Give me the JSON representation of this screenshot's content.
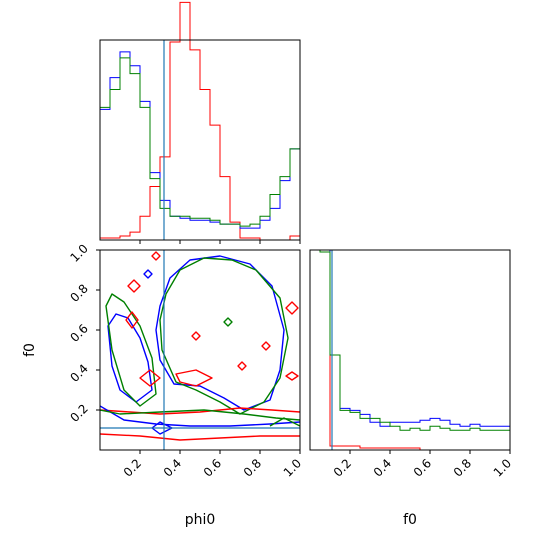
{
  "chart_data": {
    "type": "corner",
    "params": [
      "phi0",
      "f0"
    ],
    "xlabels": [
      "phi0",
      "f0"
    ],
    "ylabel": "f0",
    "series_colors": [
      "#ff0000",
      "#0000ff",
      "#008000"
    ],
    "truth": {
      "phi0": 0.32,
      "f0": 0.11,
      "color": "#1f77b4"
    },
    "ticks": {
      "phi0": [
        "0.2",
        "0.4",
        "0.6",
        "0.8",
        "1.0"
      ],
      "f0": [
        "0.2",
        "0.4",
        "0.6",
        "0.8",
        "1.0"
      ]
    },
    "hist_phi0": {
      "range": [
        0,
        1
      ],
      "bins": 20,
      "ymax": 1.0,
      "series": [
        {
          "color": "#ff0000",
          "values": [
            0.01,
            0.01,
            0.02,
            0.04,
            0.12,
            0.27,
            0.42,
            1.0,
            1.2,
            0.96,
            0.76,
            0.58,
            0.32,
            0.09,
            0.01,
            0.01,
            0.0,
            0.0,
            0.0,
            0.02
          ]
        },
        {
          "color": "#0000ff",
          "values": [
            0.66,
            0.82,
            0.95,
            0.88,
            0.7,
            0.34,
            0.2,
            0.12,
            0.11,
            0.1,
            0.1,
            0.09,
            0.08,
            0.08,
            0.06,
            0.06,
            0.1,
            0.16,
            0.3,
            0.46
          ]
        },
        {
          "color": "#008000",
          "values": [
            0.67,
            0.76,
            0.92,
            0.84,
            0.67,
            0.31,
            0.16,
            0.12,
            0.12,
            0.11,
            0.11,
            0.1,
            0.08,
            0.08,
            0.07,
            0.08,
            0.12,
            0.23,
            0.32,
            0.46
          ]
        }
      ]
    },
    "hist_f0": {
      "range": [
        0,
        1
      ],
      "bins": 20,
      "ymax": 1.0,
      "series": [
        {
          "color": "#ff0000",
          "values": [
            1.3,
            1.5,
            0.02,
            0.02,
            0.02,
            0.01,
            0.01,
            0.01,
            0.01,
            0.01,
            0.01,
            0.0,
            0.0,
            0.0,
            0.0,
            0.0,
            0.0,
            0.0,
            0.0,
            0.0
          ]
        },
        {
          "color": "#0000ff",
          "values": [
            1.2,
            1.2,
            0.48,
            0.21,
            0.2,
            0.18,
            0.14,
            0.12,
            0.14,
            0.14,
            0.14,
            0.15,
            0.16,
            0.15,
            0.13,
            0.12,
            0.13,
            0.12,
            0.12,
            0.12
          ]
        },
        {
          "color": "#008000",
          "values": [
            1.1,
            1.0,
            0.48,
            0.2,
            0.19,
            0.16,
            0.16,
            0.14,
            0.12,
            0.1,
            0.11,
            0.1,
            0.12,
            0.11,
            0.1,
            0.1,
            0.11,
            0.1,
            0.1,
            0.1
          ]
        }
      ]
    },
    "contours": [
      {
        "color": "#0000ff",
        "closed": true,
        "points": [
          [
            0.3,
            0.72
          ],
          [
            0.35,
            0.86
          ],
          [
            0.45,
            0.95
          ],
          [
            0.6,
            0.97
          ],
          [
            0.75,
            0.93
          ],
          [
            0.86,
            0.82
          ],
          [
            0.92,
            0.6
          ],
          [
            0.9,
            0.4
          ],
          [
            0.85,
            0.25
          ],
          [
            0.72,
            0.2
          ],
          [
            0.62,
            0.26
          ],
          [
            0.5,
            0.32
          ],
          [
            0.37,
            0.33
          ],
          [
            0.3,
            0.45
          ],
          [
            0.28,
            0.6
          ]
        ]
      },
      {
        "color": "#008000",
        "closed": true,
        "points": [
          [
            0.33,
            0.78
          ],
          [
            0.4,
            0.9
          ],
          [
            0.52,
            0.96
          ],
          [
            0.66,
            0.95
          ],
          [
            0.78,
            0.9
          ],
          [
            0.9,
            0.76
          ],
          [
            0.94,
            0.56
          ],
          [
            0.9,
            0.36
          ],
          [
            0.82,
            0.24
          ],
          [
            0.7,
            0.18
          ],
          [
            0.6,
            0.24
          ],
          [
            0.48,
            0.3
          ],
          [
            0.38,
            0.34
          ],
          [
            0.31,
            0.5
          ],
          [
            0.3,
            0.65
          ]
        ]
      },
      {
        "color": "#0000ff",
        "closed": true,
        "points": [
          [
            0.04,
            0.62
          ],
          [
            0.06,
            0.42
          ],
          [
            0.1,
            0.3
          ],
          [
            0.18,
            0.24
          ],
          [
            0.26,
            0.3
          ],
          [
            0.24,
            0.44
          ],
          [
            0.2,
            0.56
          ],
          [
            0.14,
            0.66
          ],
          [
            0.08,
            0.68
          ]
        ]
      },
      {
        "color": "#008000",
        "closed": true,
        "points": [
          [
            0.03,
            0.72
          ],
          [
            0.06,
            0.5
          ],
          [
            0.12,
            0.3
          ],
          [
            0.2,
            0.22
          ],
          [
            0.28,
            0.28
          ],
          [
            0.26,
            0.46
          ],
          [
            0.2,
            0.62
          ],
          [
            0.12,
            0.74
          ],
          [
            0.06,
            0.78
          ]
        ]
      },
      {
        "color": "#ff0000",
        "closed": true,
        "points": [
          [
            0.2,
            0.36
          ],
          [
            0.25,
            0.4
          ],
          [
            0.3,
            0.36
          ],
          [
            0.25,
            0.32
          ]
        ]
      },
      {
        "color": "#ff0000",
        "closed": true,
        "points": [
          [
            0.38,
            0.38
          ],
          [
            0.48,
            0.4
          ],
          [
            0.56,
            0.36
          ],
          [
            0.48,
            0.32
          ],
          [
            0.4,
            0.34
          ]
        ]
      },
      {
        "color": "#ff0000",
        "closed": true,
        "points": [
          [
            0.14,
            0.82
          ],
          [
            0.17,
            0.85
          ],
          [
            0.2,
            0.82
          ],
          [
            0.17,
            0.79
          ]
        ]
      },
      {
        "color": "#ff0000",
        "closed": true,
        "points": [
          [
            0.13,
            0.65
          ],
          [
            0.16,
            0.69
          ],
          [
            0.19,
            0.65
          ],
          [
            0.16,
            0.61
          ]
        ]
      },
      {
        "color": "#ff0000",
        "closed": true,
        "points": [
          [
            0.46,
            0.57
          ],
          [
            0.48,
            0.59
          ],
          [
            0.5,
            0.57
          ],
          [
            0.48,
            0.55
          ]
        ]
      },
      {
        "color": "#ff0000",
        "closed": true,
        "points": [
          [
            0.69,
            0.42
          ],
          [
            0.71,
            0.44
          ],
          [
            0.73,
            0.42
          ],
          [
            0.71,
            0.4
          ]
        ]
      },
      {
        "color": "#ff0000",
        "closed": true,
        "points": [
          [
            0.81,
            0.52
          ],
          [
            0.83,
            0.54
          ],
          [
            0.85,
            0.52
          ],
          [
            0.83,
            0.5
          ]
        ]
      },
      {
        "color": "#ff0000",
        "closed": true,
        "points": [
          [
            0.93,
            0.71
          ],
          [
            0.96,
            0.74
          ],
          [
            0.99,
            0.71
          ],
          [
            0.96,
            0.68
          ]
        ]
      },
      {
        "color": "#ff0000",
        "closed": true,
        "points": [
          [
            0.93,
            0.37
          ],
          [
            0.96,
            0.39
          ],
          [
            0.99,
            0.37
          ],
          [
            0.96,
            0.35
          ]
        ]
      },
      {
        "color": "#ff0000",
        "closed": true,
        "points": [
          [
            0.26,
            0.97
          ],
          [
            0.28,
            0.99
          ],
          [
            0.3,
            0.97
          ],
          [
            0.28,
            0.95
          ]
        ]
      },
      {
        "color": "#ff0000",
        "closed": false,
        "points": [
          [
            0.0,
            0.2
          ],
          [
            0.15,
            0.19
          ],
          [
            0.3,
            0.18
          ],
          [
            0.5,
            0.19
          ],
          [
            0.7,
            0.21
          ],
          [
            0.86,
            0.2
          ],
          [
            1.0,
            0.19
          ]
        ]
      },
      {
        "color": "#ff0000",
        "closed": false,
        "points": [
          [
            0.0,
            0.08
          ],
          [
            0.2,
            0.07
          ],
          [
            0.4,
            0.05
          ],
          [
            0.6,
            0.06
          ],
          [
            0.8,
            0.07
          ],
          [
            1.0,
            0.07
          ]
        ]
      },
      {
        "color": "#0000ff",
        "closed": false,
        "points": [
          [
            0.0,
            0.22
          ],
          [
            0.12,
            0.15
          ],
          [
            0.28,
            0.13
          ],
          [
            0.45,
            0.12
          ],
          [
            0.65,
            0.12
          ],
          [
            0.85,
            0.13
          ],
          [
            1.0,
            0.14
          ]
        ]
      },
      {
        "color": "#008000",
        "closed": false,
        "points": [
          [
            0.0,
            0.2
          ],
          [
            0.1,
            0.18
          ],
          [
            0.3,
            0.19
          ],
          [
            0.52,
            0.2
          ],
          [
            0.72,
            0.18
          ],
          [
            0.88,
            0.16
          ],
          [
            1.0,
            0.15
          ]
        ]
      },
      {
        "color": "#008000",
        "closed": false,
        "points": [
          [
            0.85,
            0.12
          ],
          [
            0.92,
            0.16
          ],
          [
            1.0,
            0.12
          ]
        ]
      },
      {
        "color": "#008000",
        "closed": true,
        "points": [
          [
            0.62,
            0.64
          ],
          [
            0.64,
            0.66
          ],
          [
            0.66,
            0.64
          ],
          [
            0.64,
            0.62
          ]
        ]
      },
      {
        "color": "#0000ff",
        "closed": true,
        "points": [
          [
            0.22,
            0.88
          ],
          [
            0.24,
            0.9
          ],
          [
            0.26,
            0.88
          ],
          [
            0.24,
            0.86
          ]
        ]
      },
      {
        "color": "#0000ff",
        "closed": true,
        "points": [
          [
            0.26,
            0.11
          ],
          [
            0.3,
            0.14
          ],
          [
            0.36,
            0.11
          ],
          [
            0.3,
            0.08
          ]
        ]
      }
    ]
  }
}
